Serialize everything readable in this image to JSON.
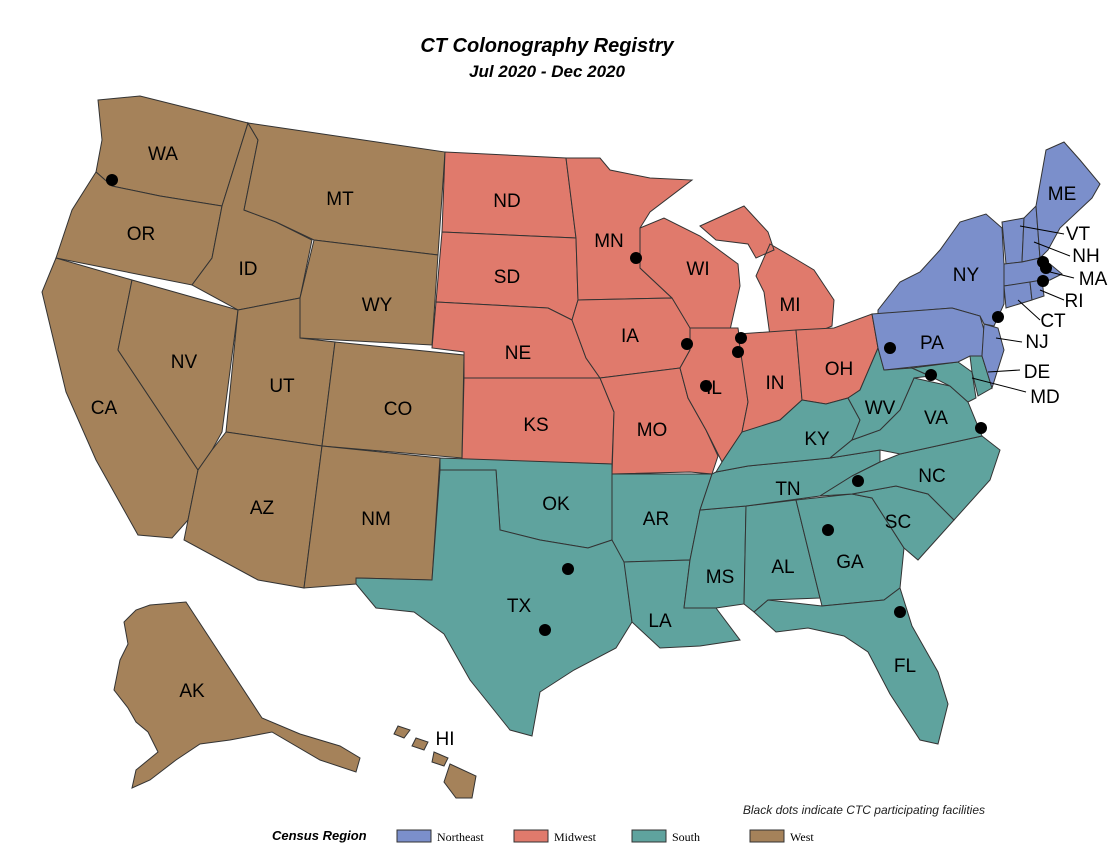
{
  "title": "CT Colonography Registry",
  "subtitle": "Jul 2020 - Dec 2020",
  "footnote": "Black dots indicate CTC participating facilities",
  "legend": {
    "title": "Census Region",
    "items": [
      {
        "key": "northeast",
        "label": "Northeast",
        "color": "#7b8fcb"
      },
      {
        "key": "midwest",
        "label": "Midwest",
        "color": "#e07a6c"
      },
      {
        "key": "south",
        "label": "South",
        "color": "#5fa39e"
      },
      {
        "key": "west",
        "label": "West",
        "color": "#a5825a"
      }
    ]
  },
  "states": {
    "west": [
      "WA",
      "OR",
      "CA",
      "ID",
      "NV",
      "MT",
      "WY",
      "UT",
      "AZ",
      "CO",
      "NM",
      "AK",
      "HI"
    ],
    "midwest": [
      "ND",
      "SD",
      "NE",
      "KS",
      "MN",
      "IA",
      "MO",
      "WI",
      "IL",
      "MI",
      "IN",
      "OH"
    ],
    "south": [
      "OK",
      "TX",
      "AR",
      "LA",
      "MS",
      "AL",
      "TN",
      "KY",
      "GA",
      "FL",
      "SC",
      "NC",
      "VA",
      "WV",
      "DE",
      "MD"
    ],
    "northeast": [
      "ME",
      "VT",
      "NH",
      "MA",
      "RI",
      "CT",
      "NY",
      "PA",
      "NJ"
    ]
  },
  "facility_marker": "black-dot"
}
